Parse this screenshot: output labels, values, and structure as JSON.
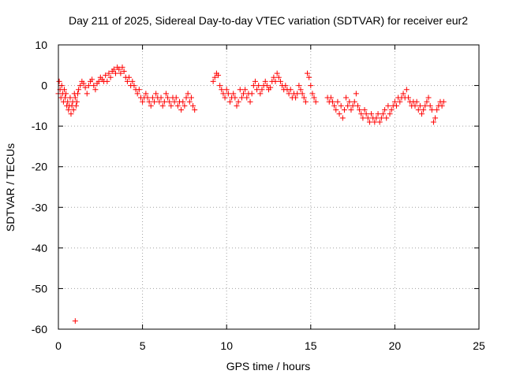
{
  "chart_data": {
    "type": "scatter",
    "title": "Day 211 of 2025, Sidereal Day-to-day VTEC variation (SDTVAR) for receiver eur2",
    "xlabel": "GPS time / hours",
    "ylabel": "SDTVAR / TECUs",
    "xlim": [
      0,
      25
    ],
    "ylim": [
      -60,
      10
    ],
    "xticks": [
      0,
      5,
      10,
      15,
      20,
      25
    ],
    "yticks": [
      10,
      0,
      -10,
      -20,
      -30,
      -40,
      -50,
      -60
    ],
    "grid": true,
    "marker": "+",
    "colors": {
      "series": "#ff0000",
      "grid": "#a0a0a0",
      "axis": "#000000"
    },
    "series": [
      {
        "name": "SDTVAR",
        "x": [
          0.0,
          0.05,
          0.1,
          0.15,
          0.2,
          0.25,
          0.3,
          0.35,
          0.4,
          0.45,
          0.5,
          0.55,
          0.6,
          0.65,
          0.7,
          0.75,
          0.8,
          0.85,
          0.9,
          0.95,
          1.0,
          1.05,
          1.1,
          1.15,
          1.2,
          1.3,
          1.4,
          1.5,
          1.6,
          1.7,
          1.8,
          1.9,
          2.0,
          2.1,
          2.2,
          2.3,
          2.4,
          2.5,
          2.6,
          2.7,
          2.8,
          2.9,
          3.0,
          3.1,
          3.2,
          3.3,
          3.4,
          3.5,
          3.6,
          3.7,
          3.8,
          3.9,
          4.0,
          4.1,
          4.2,
          4.3,
          4.4,
          4.5,
          4.6,
          4.7,
          4.8,
          4.9,
          5.0,
          5.1,
          5.2,
          5.3,
          5.4,
          5.5,
          5.6,
          5.7,
          5.8,
          5.9,
          6.0,
          6.1,
          6.2,
          6.3,
          6.4,
          6.5,
          6.6,
          6.7,
          6.8,
          6.9,
          7.0,
          7.1,
          7.2,
          7.3,
          7.4,
          7.5,
          7.6,
          7.7,
          7.8,
          7.9,
          8.0,
          8.1,
          9.2,
          9.3,
          9.4,
          9.5,
          9.6,
          9.7,
          9.8,
          9.9,
          10.0,
          10.1,
          10.2,
          10.3,
          10.4,
          10.5,
          10.6,
          10.7,
          10.8,
          10.9,
          11.0,
          11.1,
          11.2,
          11.3,
          11.4,
          11.5,
          11.6,
          11.7,
          11.8,
          11.9,
          12.0,
          12.1,
          12.2,
          12.3,
          12.4,
          12.5,
          12.6,
          12.7,
          12.8,
          12.9,
          13.0,
          13.1,
          13.2,
          13.3,
          13.4,
          13.5,
          13.6,
          13.7,
          13.8,
          13.9,
          14.0,
          14.1,
          14.2,
          14.3,
          14.4,
          14.5,
          14.6,
          14.7,
          14.8,
          14.9,
          15.0,
          15.1,
          15.2,
          15.3,
          16.0,
          16.1,
          16.2,
          16.3,
          16.4,
          16.5,
          16.6,
          16.7,
          16.8,
          16.9,
          17.0,
          17.1,
          17.2,
          17.3,
          17.4,
          17.5,
          17.6,
          17.7,
          17.8,
          17.9,
          18.0,
          18.1,
          18.2,
          18.3,
          18.4,
          18.5,
          18.6,
          18.7,
          18.8,
          18.9,
          19.0,
          19.1,
          19.2,
          19.3,
          19.4,
          19.5,
          19.6,
          19.7,
          19.8,
          19.9,
          20.0,
          20.1,
          20.2,
          20.3,
          20.4,
          20.5,
          20.6,
          20.7,
          20.8,
          20.9,
          21.0,
          21.1,
          21.2,
          21.3,
          21.4,
          21.5,
          21.6,
          21.7,
          21.8,
          21.9,
          22.0,
          22.1,
          22.2,
          22.3,
          22.4,
          22.5,
          22.6,
          22.7,
          22.8,
          22.9,
          1.0
        ],
        "y": [
          -2,
          1,
          -1,
          -3,
          0,
          -2,
          -4,
          -1,
          -3,
          -2,
          -5,
          -4,
          -6,
          -5,
          -3,
          -7,
          -5,
          -4,
          -6,
          -2,
          -3,
          -5,
          -4,
          -2,
          -1,
          0,
          1,
          0.5,
          -0.5,
          -2,
          0,
          1,
          1.5,
          0,
          -1,
          0.5,
          1,
          2,
          1.5,
          1,
          2.5,
          1,
          3,
          2,
          3.5,
          4,
          3,
          4.5,
          4,
          3,
          4.5,
          3.5,
          2,
          1,
          2,
          0,
          1,
          0,
          -1,
          -2,
          -1,
          -3,
          -4,
          -3,
          -2,
          -3,
          -4,
          -5,
          -3,
          -4,
          -2,
          -3,
          -4,
          -3,
          -5,
          -4,
          -2,
          -3,
          -4,
          -5,
          -3,
          -4,
          -3,
          -5,
          -4,
          -6,
          -4,
          -5,
          -3,
          -2,
          -4,
          -3,
          -5,
          -6,
          1,
          2,
          3,
          2.5,
          0,
          -1,
          -2,
          -3,
          -1,
          -2,
          -4,
          -3,
          -2,
          -3,
          -5,
          -4,
          -1,
          -3,
          -2,
          -1,
          -3,
          -2,
          -4,
          -2,
          0,
          1,
          -1,
          0,
          -2,
          -1,
          0,
          1,
          0,
          -1,
          -0.5,
          1,
          2,
          1,
          3,
          2,
          1,
          0,
          -1,
          0,
          -1,
          -2,
          -1,
          -3,
          -2,
          -3,
          -2,
          0,
          -1,
          -2,
          -3,
          -4,
          3,
          2,
          0,
          -2,
          -3,
          -4,
          -3,
          -4,
          -3,
          -4,
          -5,
          -6,
          -4,
          -7,
          -5,
          -8,
          -6,
          -3,
          -5,
          -4,
          -6,
          -5,
          -4,
          -2,
          -5,
          -6,
          -7,
          -8,
          -6,
          -7,
          -8,
          -9,
          -7,
          -8,
          -9,
          -8,
          -7,
          -9,
          -8,
          -7,
          -6,
          -8,
          -5,
          -7,
          -6,
          -5,
          -4,
          -5,
          -3,
          -4,
          -3,
          -2,
          -3,
          -1,
          -3,
          -4,
          -5,
          -4,
          -5,
          -4,
          -6,
          -5,
          -7,
          -6,
          -5,
          -4,
          -3,
          -5,
          -6,
          -9,
          -8,
          -6,
          -5,
          -4,
          -5,
          -4,
          -58
        ]
      }
    ]
  }
}
